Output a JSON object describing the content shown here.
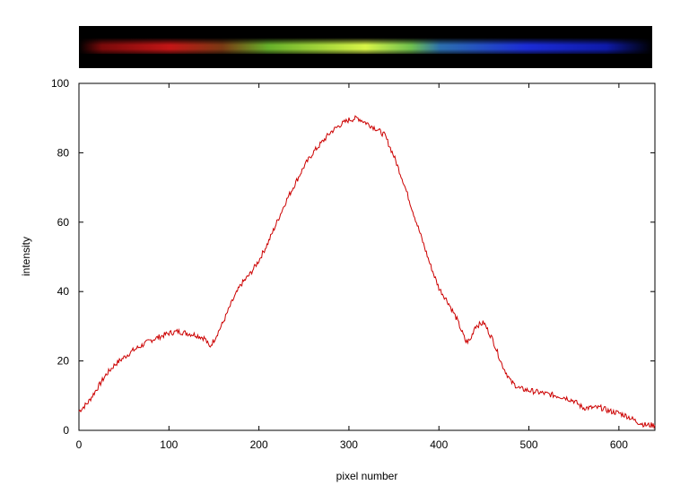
{
  "chart_data": {
    "type": "line",
    "title": "",
    "xlabel": "pixel number",
    "ylabel": "intensity",
    "xlim": [
      0,
      640
    ],
    "ylim": [
      0,
      100
    ],
    "xticks": [
      0,
      100,
      200,
      300,
      400,
      500,
      600
    ],
    "yticks": [
      0,
      20,
      40,
      60,
      80,
      100
    ],
    "grid": false,
    "series": [
      {
        "color": "#cc0000",
        "x": [
          0,
          10,
          20,
          30,
          40,
          50,
          60,
          70,
          80,
          90,
          100,
          110,
          120,
          130,
          140,
          145,
          150,
          160,
          170,
          180,
          190,
          200,
          210,
          220,
          230,
          240,
          250,
          260,
          270,
          280,
          290,
          300,
          310,
          320,
          330,
          340,
          350,
          360,
          370,
          380,
          390,
          400,
          410,
          420,
          430,
          435,
          440,
          450,
          460,
          470,
          480,
          490,
          500,
          510,
          520,
          530,
          540,
          550,
          560,
          570,
          580,
          590,
          600,
          610,
          620,
          630,
          640
        ],
        "y": [
          5.5,
          8,
          12,
          16,
          19,
          21,
          23,
          24.5,
          26,
          27,
          28,
          28.5,
          28,
          27.5,
          26.5,
          24,
          26,
          31,
          37,
          42,
          45,
          49,
          54,
          60,
          66,
          71,
          76,
          80,
          83,
          86,
          88,
          89.5,
          90,
          88.5,
          87,
          85,
          79,
          72,
          64,
          56,
          48,
          41,
          37,
          32,
          25.5,
          26,
          30,
          31,
          26,
          19,
          14,
          12,
          11.5,
          11,
          10.5,
          10,
          9.5,
          8.5,
          6.5,
          6.5,
          6.5,
          5.5,
          5,
          4,
          2.5,
          1.5,
          1.5
        ]
      }
    ]
  },
  "spectrum_strip": {
    "colors": [
      "#000000",
      "#8a1010",
      "#c01818",
      "#702818",
      "#5aa830",
      "#90e030",
      "#d0f040",
      "#70c050",
      "#2a6ab0",
      "#1c2ad0",
      "#1020c0",
      "#000000"
    ]
  }
}
